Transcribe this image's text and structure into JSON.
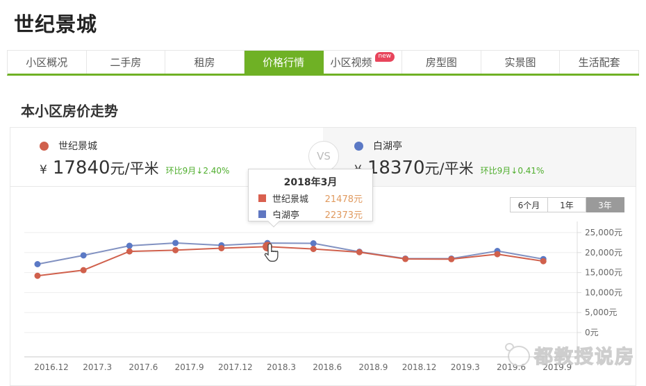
{
  "page": {
    "title": "世纪景城"
  },
  "tabs": [
    {
      "label": "小区概况",
      "active": false
    },
    {
      "label": "二手房",
      "active": false
    },
    {
      "label": "租房",
      "active": false
    },
    {
      "label": "价格行情",
      "active": true
    },
    {
      "label": "小区视频",
      "active": false,
      "badge": "new"
    },
    {
      "label": "房型图",
      "active": false
    },
    {
      "label": "实景图",
      "active": false
    },
    {
      "label": "生活配套",
      "active": false
    }
  ],
  "section_title": "本小区房价走势",
  "compare": {
    "left": {
      "name": "世纪景城",
      "currency": "¥",
      "price": "17840",
      "unit": "元/平米",
      "change": "环比9月↓2.40%",
      "color": "#d0604c"
    },
    "vs_label": "VS",
    "right": {
      "name": "白湖亭",
      "currency": "¥",
      "price": "18370",
      "unit": "元/平米",
      "change": "环比9月↓0.41%",
      "color": "#5b79c5"
    }
  },
  "range_buttons": [
    {
      "label": "6个月",
      "active": false
    },
    {
      "label": "1年",
      "active": false
    },
    {
      "label": "3年",
      "active": true
    }
  ],
  "tooltip": {
    "title": "2018年3月",
    "rows": [
      {
        "name": "世纪景城",
        "value": "21478元",
        "color": "#d9604f"
      },
      {
        "name": "白湖亭",
        "value": "22373元",
        "color": "#6077c1"
      }
    ]
  },
  "watermark_text": "都教授说房",
  "colors": {
    "accent_green": "#6fb125",
    "change_green": "#4fae2d",
    "badge_red": "#e8455c",
    "active_range_gray": "#9a9a9a"
  },
  "chart_data": {
    "type": "line",
    "categories": [
      "2016.12",
      "2017.3",
      "2017.6",
      "2017.9",
      "2017.12",
      "2018.3",
      "2018.6",
      "2018.9",
      "2018.12",
      "2019.3",
      "2019.6",
      "2019.9"
    ],
    "series": [
      {
        "name": "世纪景城",
        "color": "#d0604c",
        "values": [
          14200,
          15600,
          20300,
          20600,
          21100,
          21478,
          20900,
          20100,
          18400,
          18350,
          19600,
          17840
        ]
      },
      {
        "name": "白湖亭",
        "color": "#8191c1",
        "point_color": "#5b79c5",
        "values": [
          17100,
          19300,
          21700,
          22400,
          21800,
          22373,
          22300,
          20200,
          18500,
          18500,
          20400,
          18370
        ]
      }
    ],
    "title": "本小区房价走势",
    "xlabel": "",
    "ylabel": "",
    "ylim": [
      0,
      25000
    ],
    "ytick_step": 5000,
    "ytick_labels": [
      "0元",
      "5,000元",
      "10,000元",
      "15,000元",
      "20,000元",
      "25,000元"
    ],
    "grid": true,
    "legend_position": "header",
    "hover_index": 5,
    "hover_series": "世纪景城"
  }
}
